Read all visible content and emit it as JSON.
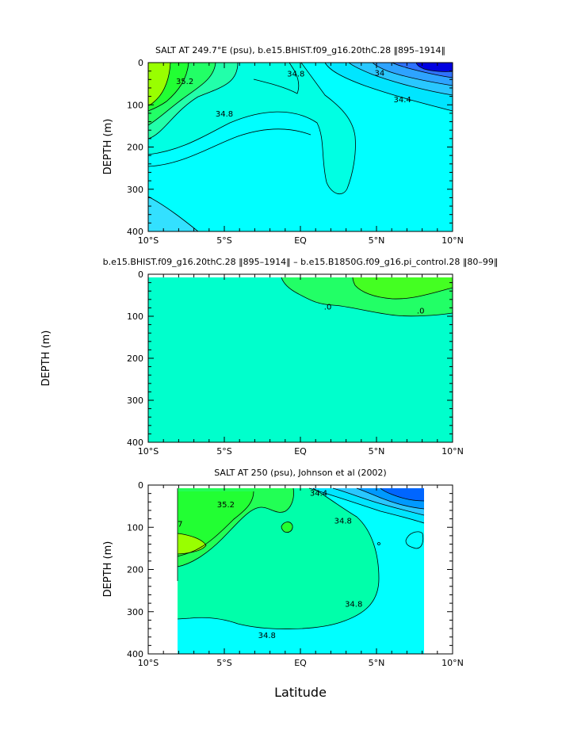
{
  "figure": {
    "xlabel": "Latitude",
    "shared_ylabel": "DEPTH (m)"
  },
  "chart_data": [
    {
      "type": "heatmap",
      "title": "SALT AT 249.7°E (psu), b.e15.BHIST.f09_g16.20thC.28 ‖895–1914‖",
      "xlabel": "",
      "ylabel": "DEPTH (m)",
      "x_ticks": [
        "10°S",
        "5°S",
        "EQ",
        "5°N",
        "10°N"
      ],
      "x_range": [
        -10,
        10
      ],
      "y_ticks": [
        "0",
        "100",
        "200",
        "300",
        "400"
      ],
      "y_range": [
        0,
        400
      ],
      "contour_labels": [
        {
          "text": "35.2",
          "lat": -7.6,
          "depth": 45
        },
        {
          "text": "34.8",
          "lat": -0.3,
          "depth": 27
        },
        {
          "text": "34.8",
          "lat": -5.0,
          "depth": 122
        },
        {
          "text": "34.4",
          "lat": 6.7,
          "depth": 88
        },
        {
          "text": "34",
          "lat": 5.2,
          "depth": 25
        }
      ],
      "colors": {
        "fresh_max": "#0000e0",
        "fresh": "#2e72ff",
        "mid": "#00ffff",
        "salty": "#22ff33",
        "saltiest": "#99ff00"
      }
    },
    {
      "type": "heatmap",
      "title": "b.e15.BHIST.f09_g16.20thC.28 ‖895–1914‖ – b.e15.B1850G.f09_g16.pi_control.28 ‖80–99‖",
      "xlabel": "",
      "ylabel": "DEPTH (m)",
      "x_ticks": [
        "10°S",
        "5°S",
        "EQ",
        "5°N",
        "10°N"
      ],
      "x_range": [
        -10,
        10
      ],
      "y_ticks": [
        "0",
        "100",
        "200",
        "300",
        "400"
      ],
      "y_range": [
        0,
        400
      ],
      "contour_labels": [
        {
          "text": ".0",
          "lat": 1.8,
          "depth": 78
        },
        {
          "text": ".0",
          "lat": 7.9,
          "depth": 88
        }
      ],
      "colors": {
        "background": "#00ffcc",
        "positive": "#22ff33",
        "positive_high": "#44ff00"
      }
    },
    {
      "type": "heatmap",
      "title": "SALT AT 250 (psu), Johnson et al (2002)",
      "xlabel": "Latitude",
      "ylabel": "DEPTH (m)",
      "x_ticks": [
        "10°S",
        "5°S",
        "EQ",
        "5°N",
        "10°N"
      ],
      "x_range": [
        -10,
        10
      ],
      "y_ticks": [
        "0",
        "100",
        "200",
        "300",
        "400"
      ],
      "y_range": [
        0,
        400
      ],
      "data_lat_range": [
        -8,
        8.2
      ],
      "contour_labels": [
        {
          "text": "35.2",
          "lat": -4.9,
          "depth": 47
        },
        {
          "text": "34.4",
          "lat": 1.2,
          "depth": 20
        },
        {
          "text": "34.8",
          "lat": 2.8,
          "depth": 85
        },
        {
          "text": "34.8",
          "lat": 3.5,
          "depth": 283
        },
        {
          "text": "34.8",
          "lat": -2.2,
          "depth": 357
        },
        {
          "text": "7",
          "lat": -7.9,
          "depth": 93
        }
      ],
      "colors": {
        "fresh_max": "#0066ff",
        "fresh": "#0099ff",
        "mid": "#00ffff",
        "green": "#00ffaa",
        "salty": "#22ff33",
        "saltiest": "#99ff00"
      }
    }
  ]
}
